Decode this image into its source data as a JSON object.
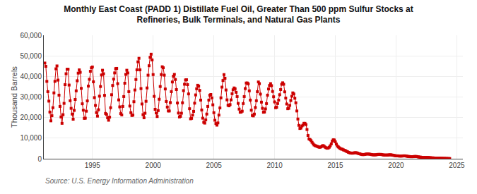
{
  "chart_data": {
    "type": "line",
    "title": "Monthly East Coast (PADD 1) Distillate Fuel Oil, Greater Than 500 ppm Sulfur Stocks at\nRefineries, Bulk Terminals, and Natural Gas Plants",
    "y_label": "Thousand Barrels",
    "annotations": [
      "Source: U.S. Energy Information Administration"
    ],
    "color": "#cc0000",
    "marker": "square",
    "line_style": "solid",
    "grid": true,
    "xlim": [
      1991.0,
      2025.5
    ],
    "xticks": [
      1995,
      2000,
      2005,
      2010,
      2015,
      2020,
      2025
    ],
    "ylim": [
      0,
      60000
    ],
    "yticks": [
      0,
      {
        "value": 10000,
        "label": "10,000"
      },
      {
        "value": 20000,
        "label": "20,000"
      },
      {
        "value": 30000,
        "label": "30,000"
      },
      {
        "value": 40000,
        "label": "40,000"
      },
      {
        "value": 50000,
        "label": "50,000"
      },
      {
        "value": 60000,
        "label": "60,000"
      }
    ],
    "x": [
      1991.083,
      1991.167,
      1991.25,
      1991.333,
      1991.417,
      1991.5,
      1991.583,
      1991.667,
      1991.75,
      1991.833,
      1991.917,
      1992.0,
      1992.083,
      1992.167,
      1992.25,
      1992.333,
      1992.417,
      1992.5,
      1992.583,
      1992.667,
      1992.75,
      1992.833,
      1992.917,
      1993.0,
      1993.083,
      1993.167,
      1993.25,
      1993.333,
      1993.417,
      1993.5,
      1993.583,
      1993.667,
      1993.75,
      1993.833,
      1993.917,
      1994.0,
      1994.083,
      1994.167,
      1994.25,
      1994.333,
      1994.417,
      1994.5,
      1994.583,
      1994.667,
      1994.75,
      1994.833,
      1994.917,
      1995.0,
      1995.083,
      1995.167,
      1995.25,
      1995.333,
      1995.417,
      1995.5,
      1995.583,
      1995.667,
      1995.75,
      1995.833,
      1995.917,
      1996.0,
      1996.083,
      1996.167,
      1996.25,
      1996.333,
      1996.417,
      1996.5,
      1996.583,
      1996.667,
      1996.75,
      1996.833,
      1996.917,
      1997.0,
      1997.083,
      1997.167,
      1997.25,
      1997.333,
      1997.417,
      1997.5,
      1997.583,
      1997.667,
      1997.75,
      1997.833,
      1997.917,
      1998.0,
      1998.083,
      1998.167,
      1998.25,
      1998.333,
      1998.417,
      1998.5,
      1998.583,
      1998.667,
      1998.75,
      1998.833,
      1998.917,
      1999.0,
      1999.083,
      1999.167,
      1999.25,
      1999.333,
      1999.417,
      1999.5,
      1999.583,
      1999.667,
      1999.75,
      1999.833,
      1999.917,
      2000.0,
      2000.083,
      2000.167,
      2000.25,
      2000.333,
      2000.417,
      2000.5,
      2000.583,
      2000.667,
      2000.75,
      2000.833,
      2000.917,
      2001.0,
      2001.083,
      2001.167,
      2001.25,
      2001.333,
      2001.417,
      2001.5,
      2001.583,
      2001.667,
      2001.75,
      2001.833,
      2001.917,
      2002.0,
      2002.083,
      2002.167,
      2002.25,
      2002.333,
      2002.417,
      2002.5,
      2002.583,
      2002.667,
      2002.75,
      2002.833,
      2002.917,
      2003.0,
      2003.083,
      2003.167,
      2003.25,
      2003.333,
      2003.417,
      2003.5,
      2003.583,
      2003.667,
      2003.75,
      2003.833,
      2003.917,
      2004.0,
      2004.083,
      2004.167,
      2004.25,
      2004.333,
      2004.417,
      2004.5,
      2004.583,
      2004.667,
      2004.75,
      2004.833,
      2004.917,
      2005.0,
      2005.083,
      2005.167,
      2005.25,
      2005.333,
      2005.417,
      2005.5,
      2005.583,
      2005.667,
      2005.75,
      2005.833,
      2005.917,
      2006.0,
      2006.083,
      2006.167,
      2006.25,
      2006.333,
      2006.417,
      2006.5,
      2006.583,
      2006.667,
      2006.75,
      2006.833,
      2006.917,
      2007.0,
      2007.083,
      2007.167,
      2007.25,
      2007.333,
      2007.417,
      2007.5,
      2007.583,
      2007.667,
      2007.75,
      2007.833,
      2007.917,
      2008.0,
      2008.083,
      2008.167,
      2008.25,
      2008.333,
      2008.417,
      2008.5,
      2008.583,
      2008.667,
      2008.75,
      2008.833,
      2008.917,
      2009.0,
      2009.083,
      2009.167,
      2009.25,
      2009.333,
      2009.417,
      2009.5,
      2009.583,
      2009.667,
      2009.75,
      2009.833,
      2009.917,
      2010.0,
      2010.083,
      2010.167,
      2010.25,
      2010.333,
      2010.417,
      2010.5,
      2010.583,
      2010.667,
      2010.75,
      2010.833,
      2010.917,
      2011.0,
      2011.083,
      2011.167,
      2011.25,
      2011.333,
      2011.417,
      2011.5,
      2011.583,
      2011.667,
      2011.75,
      2011.833,
      2011.917,
      2012.0,
      2012.083,
      2012.167,
      2012.25,
      2012.333,
      2012.417,
      2012.5,
      2012.583,
      2012.667,
      2012.75,
      2012.833,
      2012.917,
      2013.0,
      2013.083,
      2013.167,
      2013.25,
      2013.333,
      2013.417,
      2013.5,
      2013.583,
      2013.667,
      2013.75,
      2013.833,
      2013.917,
      2014.0,
      2014.083,
      2014.167,
      2014.25,
      2014.333,
      2014.417,
      2014.5,
      2014.583,
      2014.667,
      2014.75,
      2014.833,
      2014.917,
      2015.0,
      2015.083,
      2015.167,
      2015.25,
      2015.333,
      2015.417,
      2015.5,
      2015.583,
      2015.667,
      2015.75,
      2015.833,
      2015.917,
      2016.0,
      2016.083,
      2016.167,
      2016.25,
      2016.333,
      2016.417,
      2016.5,
      2016.583,
      2016.667,
      2016.75,
      2016.833,
      2016.917,
      2017.0,
      2017.083,
      2017.167,
      2017.25,
      2017.333,
      2017.417,
      2017.5,
      2017.583,
      2017.667,
      2017.75,
      2017.833,
      2017.917,
      2018.0,
      2018.083,
      2018.167,
      2018.25,
      2018.333,
      2018.417,
      2018.5,
      2018.583,
      2018.667,
      2018.75,
      2018.833,
      2018.917,
      2019.0,
      2019.083,
      2019.167,
      2019.25,
      2019.333,
      2019.417,
      2019.5,
      2019.583,
      2019.667,
      2019.75,
      2019.833,
      2019.917,
      2020.0,
      2020.083,
      2020.167,
      2020.25,
      2020.333,
      2020.417,
      2020.5,
      2020.583,
      2020.667,
      2020.75,
      2020.833,
      2020.917,
      2021.0,
      2021.083,
      2021.167,
      2021.25,
      2021.333,
      2021.417,
      2021.5,
      2021.583,
      2021.667,
      2021.75,
      2021.833,
      2021.917,
      2022.0,
      2022.083,
      2022.167,
      2022.25,
      2022.333,
      2022.417,
      2022.5,
      2022.583,
      2022.667,
      2022.75,
      2022.833,
      2022.917,
      2023.0,
      2023.083,
      2023.167,
      2023.25,
      2023.333,
      2023.417,
      2023.5,
      2023.583,
      2023.667,
      2023.75,
      2023.833,
      2023.917,
      2024.0,
      2024.083,
      2024.167,
      2024.25,
      2024.333,
      2024.417
    ],
    "values": [
      46500,
      44900,
      37600,
      32600,
      28000,
      22700,
      18400,
      20900,
      24800,
      32000,
      37600,
      43700,
      45100,
      38200,
      30900,
      25400,
      20300,
      17200,
      21400,
      26900,
      36000,
      41300,
      43500,
      43500,
      35800,
      28200,
      24500,
      21700,
      19200,
      23500,
      28800,
      33000,
      37900,
      41600,
      43200,
      42000,
      34200,
      26700,
      23600,
      19600,
      19700,
      23100,
      28100,
      35300,
      38600,
      42500,
      44200,
      44600,
      37400,
      29700,
      25900,
      22400,
      20700,
      23800,
      30400,
      35100,
      40700,
      43000,
      41300,
      30800,
      22000,
      21500,
      19900,
      18700,
      20200,
      24800,
      31100,
      35600,
      38700,
      41700,
      43800,
      43900,
      36500,
      28600,
      25200,
      21900,
      21300,
      25400,
      30200,
      36700,
      41000,
      43000,
      41700,
      32600,
      25600,
      22400,
      21000,
      21200,
      27700,
      33400,
      38500,
      43200,
      47100,
      48800,
      43200,
      34100,
      26600,
      21400,
      19900,
      22100,
      27900,
      34400,
      40600,
      45200,
      49300,
      50800,
      48000,
      40900,
      30300,
      24000,
      22200,
      20500,
      23400,
      28900,
      35100,
      40900,
      44700,
      44200,
      40600,
      33900,
      27800,
      25100,
      23200,
      23200,
      27300,
      32600,
      37300,
      40100,
      41000,
      38500,
      33600,
      27100,
      22200,
      20300,
      20600,
      22100,
      27200,
      33100,
      36200,
      38300,
      38400,
      36000,
      31500,
      24300,
      19400,
      19600,
      21200,
      23000,
      27000,
      31000,
      34000,
      35700,
      35300,
      33200,
      28500,
      23700,
      19700,
      17700,
      17300,
      18900,
      21700,
      25400,
      28500,
      30900,
      31200,
      29600,
      26200,
      22400,
      18700,
      17100,
      16300,
      17400,
      21200,
      24700,
      29600,
      34800,
      38000,
      40900,
      39100,
      33400,
      28600,
      26000,
      25700,
      26300,
      28600,
      31600,
      33500,
      34400,
      34000,
      32300,
      30200,
      26900,
      24100,
      22600,
      22700,
      23100,
      26800,
      30200,
      34100,
      36800,
      36800,
      36400,
      33000,
      28500,
      23600,
      21000,
      20800,
      21700,
      24900,
      28200,
      32600,
      37300,
      36500,
      31400,
      27500,
      24500,
      22600,
      22700,
      24200,
      26800,
      30900,
      33900,
      35600,
      36500,
      35500,
      32700,
      30100,
      27600,
      24800,
      25000,
      26800,
      28500,
      31100,
      33600,
      36200,
      36900,
      36200,
      32500,
      29500,
      26600,
      24300,
      24500,
      25900,
      28300,
      30400,
      32000,
      31500,
      29400,
      27200,
      23200,
      19300,
      16200,
      14700,
      14900,
      15900,
      16300,
      17200,
      17200,
      16600,
      14200,
      11300,
      9600,
      9300,
      8800,
      8000,
      7300,
      6700,
      6400,
      6200,
      6000,
      5800,
      5600,
      5600,
      5800,
      6200,
      6400,
      6000,
      5600,
      5300,
      5100,
      5200,
      5600,
      6300,
      7200,
      8600,
      9200,
      9100,
      8200,
      7100,
      6200,
      5700,
      5300,
      4900,
      4700,
      4600,
      4300,
      4100,
      3900,
      3600,
      3400,
      3100,
      2900,
      2800,
      2700,
      2700,
      2800,
      2900,
      2900,
      2900,
      2700,
      2500,
      2400,
      2200,
      2100,
      2000,
      2000,
      2100,
      2200,
      2300,
      2300,
      2300,
      2200,
      2100,
      2000,
      1900,
      1900,
      1900,
      1900,
      2000,
      2100,
      2100,
      2100,
      2100,
      2000,
      1900,
      1800,
      1800,
      1800,
      1800,
      1800,
      1900,
      1900,
      1900,
      1800,
      1700,
      1600,
      1500,
      1400,
      1400,
      1400,
      1300,
      1300,
      1300,
      1300,
      1400,
      1400,
      1400,
      1300,
      1200,
      1100,
      1100,
      1000,
      1000,
      1000,
      1000,
      1100,
      1100,
      1100,
      1000,
      900,
      800,
      800,
      700,
      600,
      600,
      600,
      600,
      600,
      600,
      600,
      500,
      500,
      400,
      400,
      400,
      350,
      300,
      300,
      300,
      300,
      300,
      300,
      250,
      200,
      200,
      200,
      150,
      150,
      100,
      100,
      100
    ]
  }
}
